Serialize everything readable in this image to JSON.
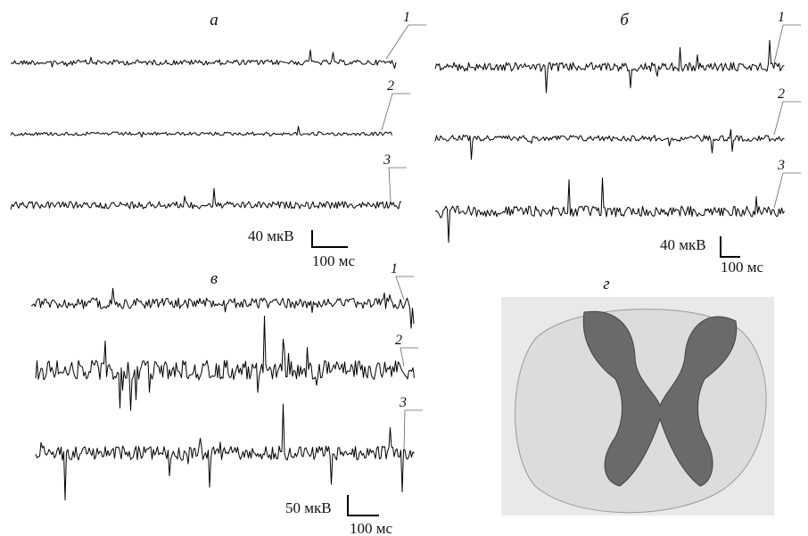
{
  "panels": [
    {
      "label": "а",
      "traces": [
        "1",
        "2",
        "3"
      ],
      "scale": {
        "amplitude": "40 мкВ",
        "time": "100 мс"
      }
    },
    {
      "label": "б",
      "traces": [
        "1",
        "2",
        "3"
      ],
      "scale": {
        "amplitude": "40 мкВ",
        "time": "100 мс"
      }
    },
    {
      "label": "в",
      "traces": [
        "1",
        "2",
        "3"
      ],
      "scale": {
        "amplitude": "50 мкВ",
        "time": "100 мс"
      }
    },
    {
      "label": "г"
    }
  ]
}
